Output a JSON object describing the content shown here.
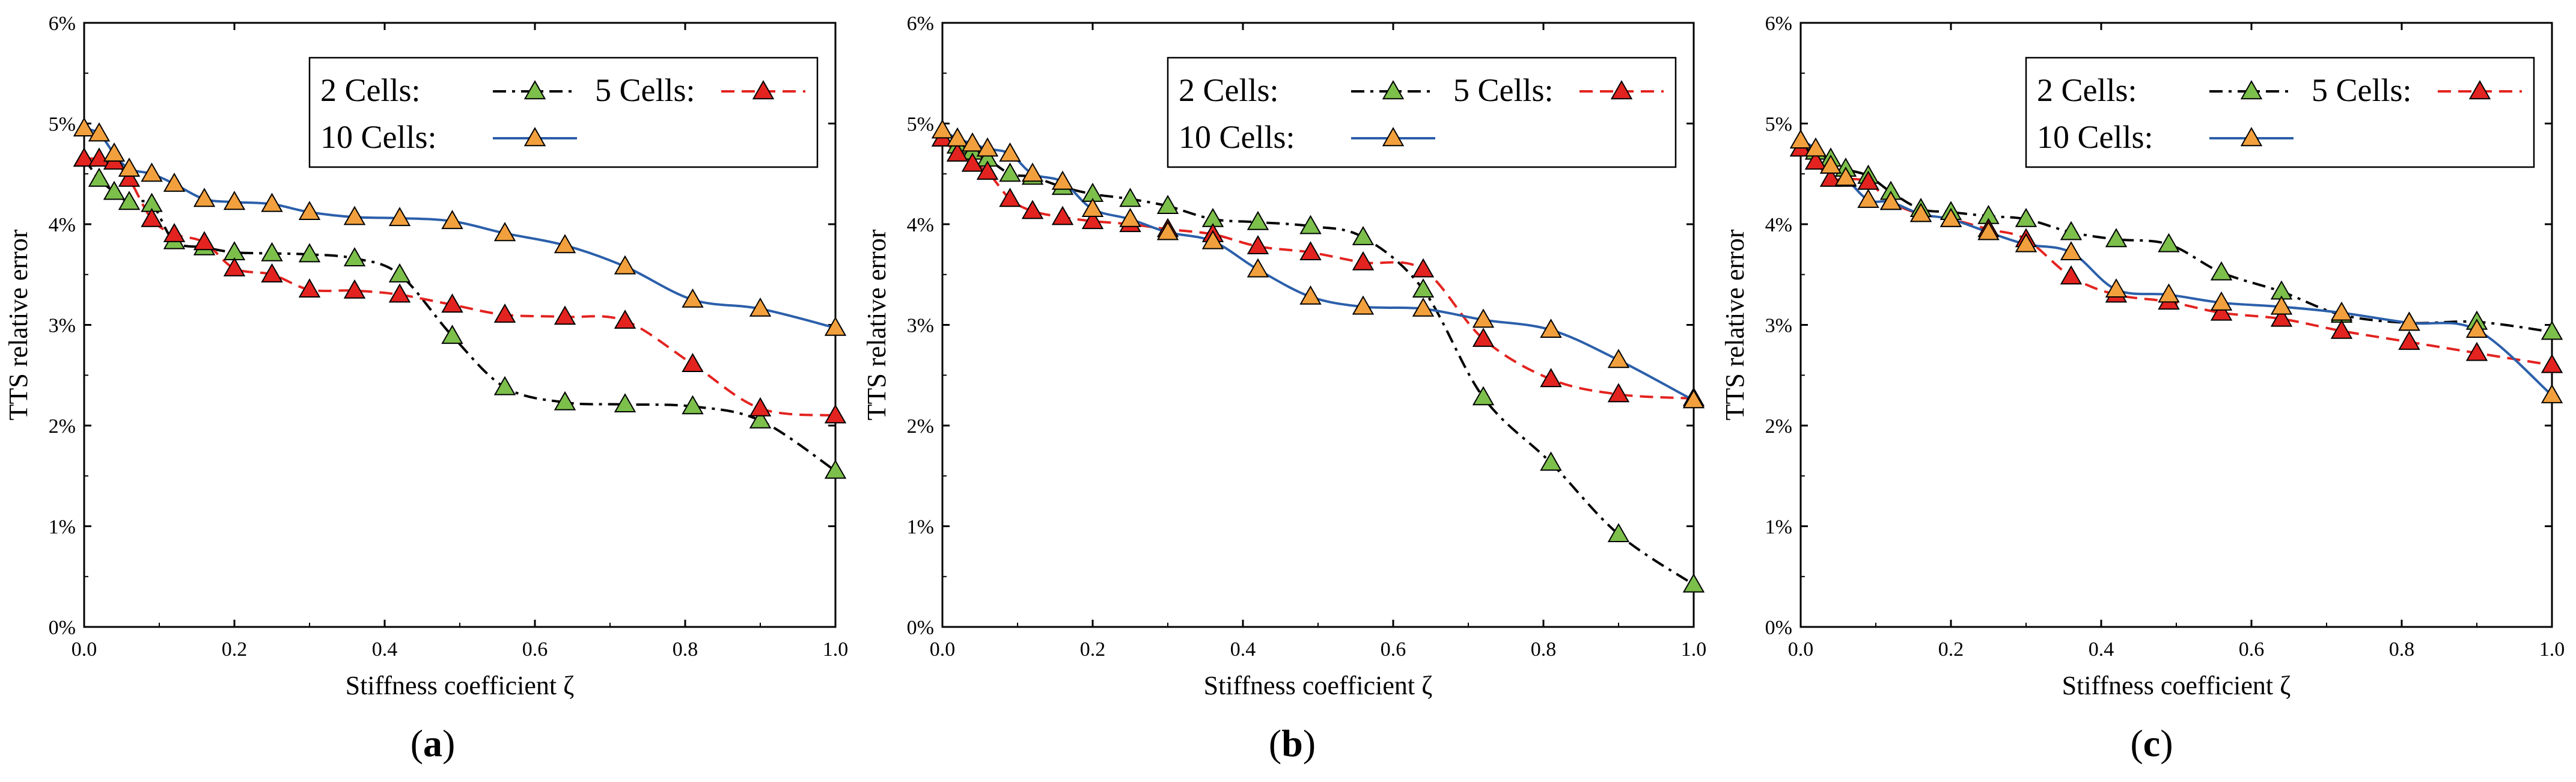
{
  "figure": {
    "panels": [
      {
        "label_open": "(",
        "label_letter": "a",
        "label_close": ")"
      },
      {
        "label_open": "(",
        "label_letter": "b",
        "label_close": ")"
      },
      {
        "label_open": "(",
        "label_letter": "c",
        "label_close": ")"
      }
    ]
  },
  "chart_data": [
    {
      "type": "line",
      "panel": "(a)",
      "xlabel": "Stiffness coefficient  ζ",
      "ylabel": "TTS relative error",
      "xlim": [
        0,
        1
      ],
      "ylim": [
        0,
        6
      ],
      "x_ticks": [
        "0.0",
        "0.2",
        "0.4",
        "0.6",
        "0.8",
        "1.0"
      ],
      "y_ticks": [
        "0%",
        "1%",
        "2%",
        "3%",
        "4%",
        "5%",
        "6%"
      ],
      "legend_position": "top-right",
      "series": [
        {
          "name": "2  Cells:",
          "color": "#000000",
          "marker_color": "#7CC04B",
          "line_style": "dash-dot",
          "x": [
            0,
            0.02,
            0.04,
            0.06,
            0.09,
            0.12,
            0.16,
            0.2,
            0.25,
            0.3,
            0.36,
            0.42,
            0.49,
            0.56,
            0.64,
            0.72,
            0.81,
            0.9,
            1.0
          ],
          "y": [
            4.65,
            4.45,
            4.32,
            4.22,
            4.2,
            3.83,
            3.77,
            3.72,
            3.71,
            3.7,
            3.66,
            3.5,
            2.89,
            2.38,
            2.23,
            2.21,
            2.19,
            2.05,
            1.55
          ]
        },
        {
          "name": "5 Cells:",
          "color": "#E3231F",
          "marker_color": "#E3231F",
          "line_style": "dashed",
          "x": [
            0,
            0.02,
            0.04,
            0.06,
            0.09,
            0.12,
            0.16,
            0.2,
            0.25,
            0.3,
            0.36,
            0.42,
            0.49,
            0.56,
            0.64,
            0.72,
            0.81,
            0.9,
            1.0
          ],
          "y": [
            4.65,
            4.65,
            4.62,
            4.45,
            4.05,
            3.9,
            3.82,
            3.56,
            3.5,
            3.35,
            3.34,
            3.3,
            3.2,
            3.1,
            3.08,
            3.04,
            2.61,
            2.17,
            2.1
          ]
        },
        {
          "name": "10 Cells:",
          "color": "#2B5FAA",
          "marker_color": "#F2A03D",
          "line_style": "solid",
          "x": [
            0,
            0.02,
            0.04,
            0.06,
            0.09,
            0.12,
            0.16,
            0.2,
            0.25,
            0.3,
            0.36,
            0.42,
            0.49,
            0.56,
            0.64,
            0.72,
            0.81,
            0.9,
            1.0
          ],
          "y": [
            4.95,
            4.9,
            4.7,
            4.55,
            4.5,
            4.4,
            4.25,
            4.22,
            4.2,
            4.12,
            4.07,
            4.06,
            4.03,
            3.91,
            3.79,
            3.58,
            3.25,
            3.16,
            2.97
          ]
        }
      ]
    },
    {
      "type": "line",
      "panel": "(b)",
      "xlabel": "Stiffness coefficient  ζ",
      "ylabel": "TTS relative error",
      "xlim": [
        0,
        1
      ],
      "ylim": [
        0,
        6
      ],
      "x_ticks": [
        "0.0",
        "0.2",
        "0.4",
        "0.6",
        "0.8",
        "1.0"
      ],
      "y_ticks": [
        "0%",
        "1%",
        "2%",
        "3%",
        "4%",
        "5%",
        "6%"
      ],
      "legend_position": "top-right",
      "series": [
        {
          "name": "2  Cells:",
          "color": "#000000",
          "marker_color": "#7CC04B",
          "line_style": "dash-dot",
          "x": [
            0,
            0.02,
            0.04,
            0.06,
            0.09,
            0.12,
            0.16,
            0.2,
            0.25,
            0.3,
            0.36,
            0.42,
            0.49,
            0.56,
            0.64,
            0.72,
            0.81,
            0.9,
            1.0
          ],
          "y": [
            4.85,
            4.78,
            4.72,
            4.65,
            4.5,
            4.47,
            4.37,
            4.3,
            4.25,
            4.18,
            4.05,
            4.02,
            3.98,
            3.87,
            3.35,
            2.28,
            1.63,
            0.92,
            0.42
          ]
        },
        {
          "name": "5 Cells:",
          "color": "#E3231F",
          "marker_color": "#E3231F",
          "line_style": "dashed",
          "x": [
            0,
            0.02,
            0.04,
            0.06,
            0.09,
            0.12,
            0.16,
            0.2,
            0.25,
            0.3,
            0.36,
            0.42,
            0.49,
            0.56,
            0.64,
            0.72,
            0.81,
            0.9,
            1.0
          ],
          "y": [
            4.85,
            4.7,
            4.6,
            4.52,
            4.25,
            4.13,
            4.07,
            4.03,
            4.0,
            3.95,
            3.9,
            3.78,
            3.72,
            3.62,
            3.55,
            2.86,
            2.46,
            2.31,
            2.27
          ]
        },
        {
          "name": "10 Cells:",
          "color": "#2B5FAA",
          "marker_color": "#F2A03D",
          "line_style": "solid",
          "x": [
            0,
            0.02,
            0.04,
            0.06,
            0.09,
            0.12,
            0.16,
            0.2,
            0.25,
            0.3,
            0.36,
            0.42,
            0.49,
            0.56,
            0.64,
            0.72,
            0.81,
            0.9,
            1.0
          ],
          "y": [
            4.93,
            4.85,
            4.8,
            4.75,
            4.7,
            4.5,
            4.42,
            4.15,
            4.05,
            3.92,
            3.83,
            3.55,
            3.28,
            3.18,
            3.16,
            3.05,
            2.95,
            2.65,
            2.25
          ]
        }
      ]
    },
    {
      "type": "line",
      "panel": "(c)",
      "xlabel": "Stiffness coefficient  ζ",
      "ylabel": "TTS relative error",
      "xlim": [
        0,
        1
      ],
      "ylim": [
        0,
        6
      ],
      "x_ticks": [
        "0.0",
        "0.2",
        "0.4",
        "0.6",
        "0.8",
        "1.0"
      ],
      "y_ticks": [
        "0%",
        "1%",
        "2%",
        "3%",
        "4%",
        "5%",
        "6%"
      ],
      "legend_position": "top-right",
      "series": [
        {
          "name": "2  Cells:",
          "color": "#000000",
          "marker_color": "#7CC04B",
          "line_style": "dash-dot",
          "x": [
            0,
            0.02,
            0.04,
            0.06,
            0.09,
            0.12,
            0.16,
            0.2,
            0.25,
            0.3,
            0.36,
            0.42,
            0.49,
            0.56,
            0.64,
            0.72,
            0.81,
            0.9,
            1.0
          ],
          "y": [
            4.75,
            4.72,
            4.65,
            4.55,
            4.48,
            4.32,
            4.15,
            4.12,
            4.08,
            4.05,
            3.92,
            3.85,
            3.8,
            3.52,
            3.33,
            3.1,
            3.02,
            3.03,
            2.93
          ]
        },
        {
          "name": "5 Cells:",
          "color": "#E3231F",
          "marker_color": "#E3231F",
          "line_style": "dashed",
          "x": [
            0,
            0.02,
            0.04,
            0.06,
            0.09,
            0.12,
            0.16,
            0.2,
            0.25,
            0.3,
            0.36,
            0.42,
            0.49,
            0.56,
            0.64,
            0.72,
            0.81,
            0.9,
            1.0
          ],
          "y": [
            4.75,
            4.62,
            4.45,
            4.45,
            4.42,
            4.22,
            4.1,
            4.05,
            3.95,
            3.85,
            3.48,
            3.3,
            3.23,
            3.12,
            3.06,
            2.94,
            2.83,
            2.72,
            2.6
          ]
        },
        {
          "name": "10 Cells:",
          "color": "#2B5FAA",
          "marker_color": "#F2A03D",
          "line_style": "solid",
          "x": [
            0,
            0.02,
            0.04,
            0.06,
            0.09,
            0.12,
            0.16,
            0.2,
            0.25,
            0.3,
            0.36,
            0.42,
            0.49,
            0.56,
            0.64,
            0.72,
            0.81,
            0.9,
            1.0
          ],
          "y": [
            4.83,
            4.75,
            4.58,
            4.46,
            4.24,
            4.22,
            4.1,
            4.05,
            3.92,
            3.8,
            3.72,
            3.35,
            3.3,
            3.22,
            3.18,
            3.12,
            3.02,
            2.95,
            2.3
          ]
        }
      ]
    }
  ]
}
